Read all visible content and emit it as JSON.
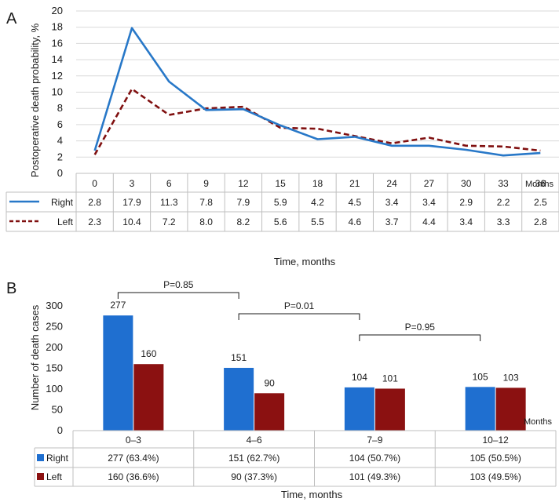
{
  "panels": {
    "a": "A",
    "b": "B"
  },
  "colors": {
    "right": "#2878C8",
    "left": "#801010",
    "right_bar": "#1F6FD0",
    "left_bar": "#8B1111",
    "grid": "#d9d9d9",
    "axis": "#bfbfbf",
    "text": "#1a1a1a"
  },
  "chart_data": [
    {
      "type": "line",
      "panel": "A",
      "xlabel": "Time, months",
      "ylabel": "Postoperative death probability, %",
      "x_unit": "Months",
      "ylim": [
        0,
        20
      ],
      "yticks": [
        0,
        2,
        4,
        6,
        8,
        10,
        12,
        14,
        16,
        18,
        20
      ],
      "x": [
        "0",
        "3",
        "6",
        "9",
        "12",
        "15",
        "18",
        "21",
        "24",
        "27",
        "30",
        "33",
        "36"
      ],
      "series": [
        {
          "name": "Right",
          "style": "solid",
          "values": [
            2.8,
            17.9,
            11.3,
            7.8,
            7.9,
            5.9,
            4.2,
            4.5,
            3.4,
            3.4,
            2.9,
            2.2,
            2.5
          ]
        },
        {
          "name": "Left",
          "style": "dashed",
          "values": [
            2.3,
            10.4,
            7.2,
            8.0,
            8.2,
            5.6,
            5.5,
            4.6,
            3.7,
            4.4,
            3.4,
            3.3,
            2.8
          ]
        }
      ],
      "table": {
        "Right": [
          "2.8",
          "17.9",
          "11.3",
          "7.8",
          "7.9",
          "5.9",
          "4.2",
          "4.5",
          "3.4",
          "3.4",
          "2.9",
          "2.2",
          "2.5"
        ],
        "Left": [
          "2.3",
          "10.4",
          "7.2",
          "8.0",
          "8.2",
          "5.6",
          "5.5",
          "4.6",
          "3.7",
          "4.4",
          "3.4",
          "3.3",
          "2.8"
        ]
      }
    },
    {
      "type": "bar",
      "panel": "B",
      "xlabel": "Time, months",
      "ylabel": "Number of death cases",
      "x_unit": "Months",
      "ylim": [
        0,
        300
      ],
      "yticks": [
        0,
        50,
        100,
        150,
        200,
        250,
        300
      ],
      "categories": [
        "0–3",
        "4–6",
        "7–9",
        "10–12"
      ],
      "series": [
        {
          "name": "Right",
          "values": [
            277,
            151,
            104,
            105
          ]
        },
        {
          "name": "Left",
          "values": [
            160,
            90,
            101,
            103
          ]
        }
      ],
      "table": {
        "Right": [
          "277 (63.4%)",
          "151 (62.7%)",
          "104 (50.7%)",
          "105 (50.5%)"
        ],
        "Left": [
          "160 (36.6%)",
          "90 (37.3%)",
          "101 (49.3%)",
          "103 (49.5%)"
        ]
      },
      "comparisons": [
        {
          "from": 0,
          "to": 1,
          "label": "P=0.85"
        },
        {
          "from": 1,
          "to": 2,
          "label": "P=0.01"
        },
        {
          "from": 2,
          "to": 3,
          "label": "P=0.95"
        }
      ]
    }
  ]
}
